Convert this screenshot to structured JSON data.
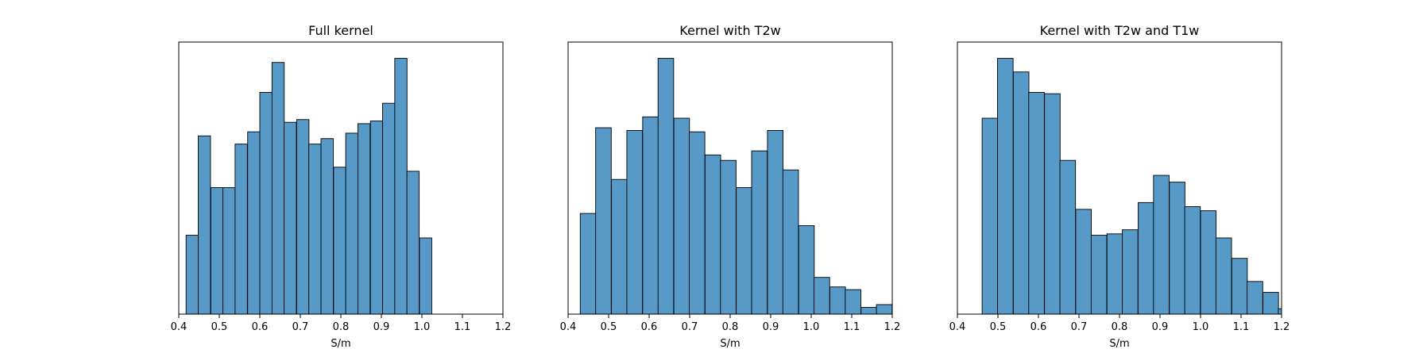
{
  "chart_data": [
    {
      "type": "bar",
      "title": "Full kernel",
      "xlabel": "S/m",
      "ylabel": "",
      "xlim": [
        0.4,
        1.2
      ],
      "ylim": [
        0,
        1.0
      ],
      "xticks": [
        "0.4",
        "0.5",
        "0.6",
        "0.7",
        "0.8",
        "0.9",
        "1.0",
        "1.1",
        "1.2"
      ],
      "bin_width": 0.0303,
      "bins": [
        {
          "x0": 0.418,
          "value": 0.29
        },
        {
          "x0": 0.448,
          "value": 0.655
        },
        {
          "x0": 0.479,
          "value": 0.465
        },
        {
          "x0": 0.509,
          "value": 0.465
        },
        {
          "x0": 0.539,
          "value": 0.625
        },
        {
          "x0": 0.57,
          "value": 0.67
        },
        {
          "x0": 0.6,
          "value": 0.815
        },
        {
          "x0": 0.63,
          "value": 0.925
        },
        {
          "x0": 0.66,
          "value": 0.705
        },
        {
          "x0": 0.691,
          "value": 0.715
        },
        {
          "x0": 0.721,
          "value": 0.625
        },
        {
          "x0": 0.751,
          "value": 0.645
        },
        {
          "x0": 0.782,
          "value": 0.54
        },
        {
          "x0": 0.812,
          "value": 0.665
        },
        {
          "x0": 0.842,
          "value": 0.7
        },
        {
          "x0": 0.873,
          "value": 0.71
        },
        {
          "x0": 0.903,
          "value": 0.775
        },
        {
          "x0": 0.933,
          "value": 0.94
        },
        {
          "x0": 0.963,
          "value": 0.525
        },
        {
          "x0": 0.994,
          "value": 0.28
        }
      ]
    },
    {
      "type": "bar",
      "title": "Kernel with T2w",
      "xlabel": "S/m",
      "ylabel": "",
      "xlim": [
        0.4,
        1.2
      ],
      "ylim": [
        0,
        1.0
      ],
      "xticks": [
        "0.4",
        "0.5",
        "0.6",
        "0.7",
        "0.8",
        "0.9",
        "1.0",
        "1.1",
        "1.2"
      ],
      "bin_width": 0.0385,
      "bins": [
        {
          "x0": 0.43,
          "value": 0.37
        },
        {
          "x0": 0.468,
          "value": 0.685
        },
        {
          "x0": 0.507,
          "value": 0.495
        },
        {
          "x0": 0.545,
          "value": 0.675
        },
        {
          "x0": 0.584,
          "value": 0.725
        },
        {
          "x0": 0.622,
          "value": 0.94
        },
        {
          "x0": 0.661,
          "value": 0.72
        },
        {
          "x0": 0.699,
          "value": 0.67
        },
        {
          "x0": 0.738,
          "value": 0.585
        },
        {
          "x0": 0.776,
          "value": 0.565
        },
        {
          "x0": 0.815,
          "value": 0.465
        },
        {
          "x0": 0.853,
          "value": 0.6
        },
        {
          "x0": 0.892,
          "value": 0.675
        },
        {
          "x0": 0.93,
          "value": 0.53
        },
        {
          "x0": 0.969,
          "value": 0.325
        },
        {
          "x0": 1.007,
          "value": 0.135
        },
        {
          "x0": 1.046,
          "value": 0.1
        },
        {
          "x0": 1.084,
          "value": 0.09
        },
        {
          "x0": 1.123,
          "value": 0.025
        },
        {
          "x0": 1.161,
          "value": 0.035
        }
      ]
    },
    {
      "type": "bar",
      "title": "Kernel with T2w and T1w",
      "xlabel": "S/m",
      "ylabel": "",
      "xlim": [
        0.4,
        1.2
      ],
      "ylim": [
        0,
        1.0
      ],
      "xticks": [
        "0.4",
        "0.5",
        "0.6",
        "0.7",
        "0.8",
        "0.9",
        "1.0",
        "1.1",
        "1.2"
      ],
      "bin_width": 0.0385,
      "bins": [
        {
          "x0": 0.461,
          "value": 0.72
        },
        {
          "x0": 0.499,
          "value": 0.94
        },
        {
          "x0": 0.538,
          "value": 0.89
        },
        {
          "x0": 0.576,
          "value": 0.815
        },
        {
          "x0": 0.615,
          "value": 0.81
        },
        {
          "x0": 0.653,
          "value": 0.565
        },
        {
          "x0": 0.692,
          "value": 0.385
        },
        {
          "x0": 0.73,
          "value": 0.29
        },
        {
          "x0": 0.769,
          "value": 0.295
        },
        {
          "x0": 0.807,
          "value": 0.31
        },
        {
          "x0": 0.846,
          "value": 0.41
        },
        {
          "x0": 0.884,
          "value": 0.51
        },
        {
          "x0": 0.923,
          "value": 0.485
        },
        {
          "x0": 0.961,
          "value": 0.395
        },
        {
          "x0": 1.0,
          "value": 0.38
        },
        {
          "x0": 1.038,
          "value": 0.28
        },
        {
          "x0": 1.077,
          "value": 0.205
        },
        {
          "x0": 1.115,
          "value": 0.12
        },
        {
          "x0": 1.154,
          "value": 0.08
        },
        {
          "x0": 1.192,
          "value": 0.02
        }
      ]
    }
  ],
  "colors": {
    "bar_fill": "#5799c7",
    "bar_edge": "#000000",
    "axes": "#000000"
  }
}
